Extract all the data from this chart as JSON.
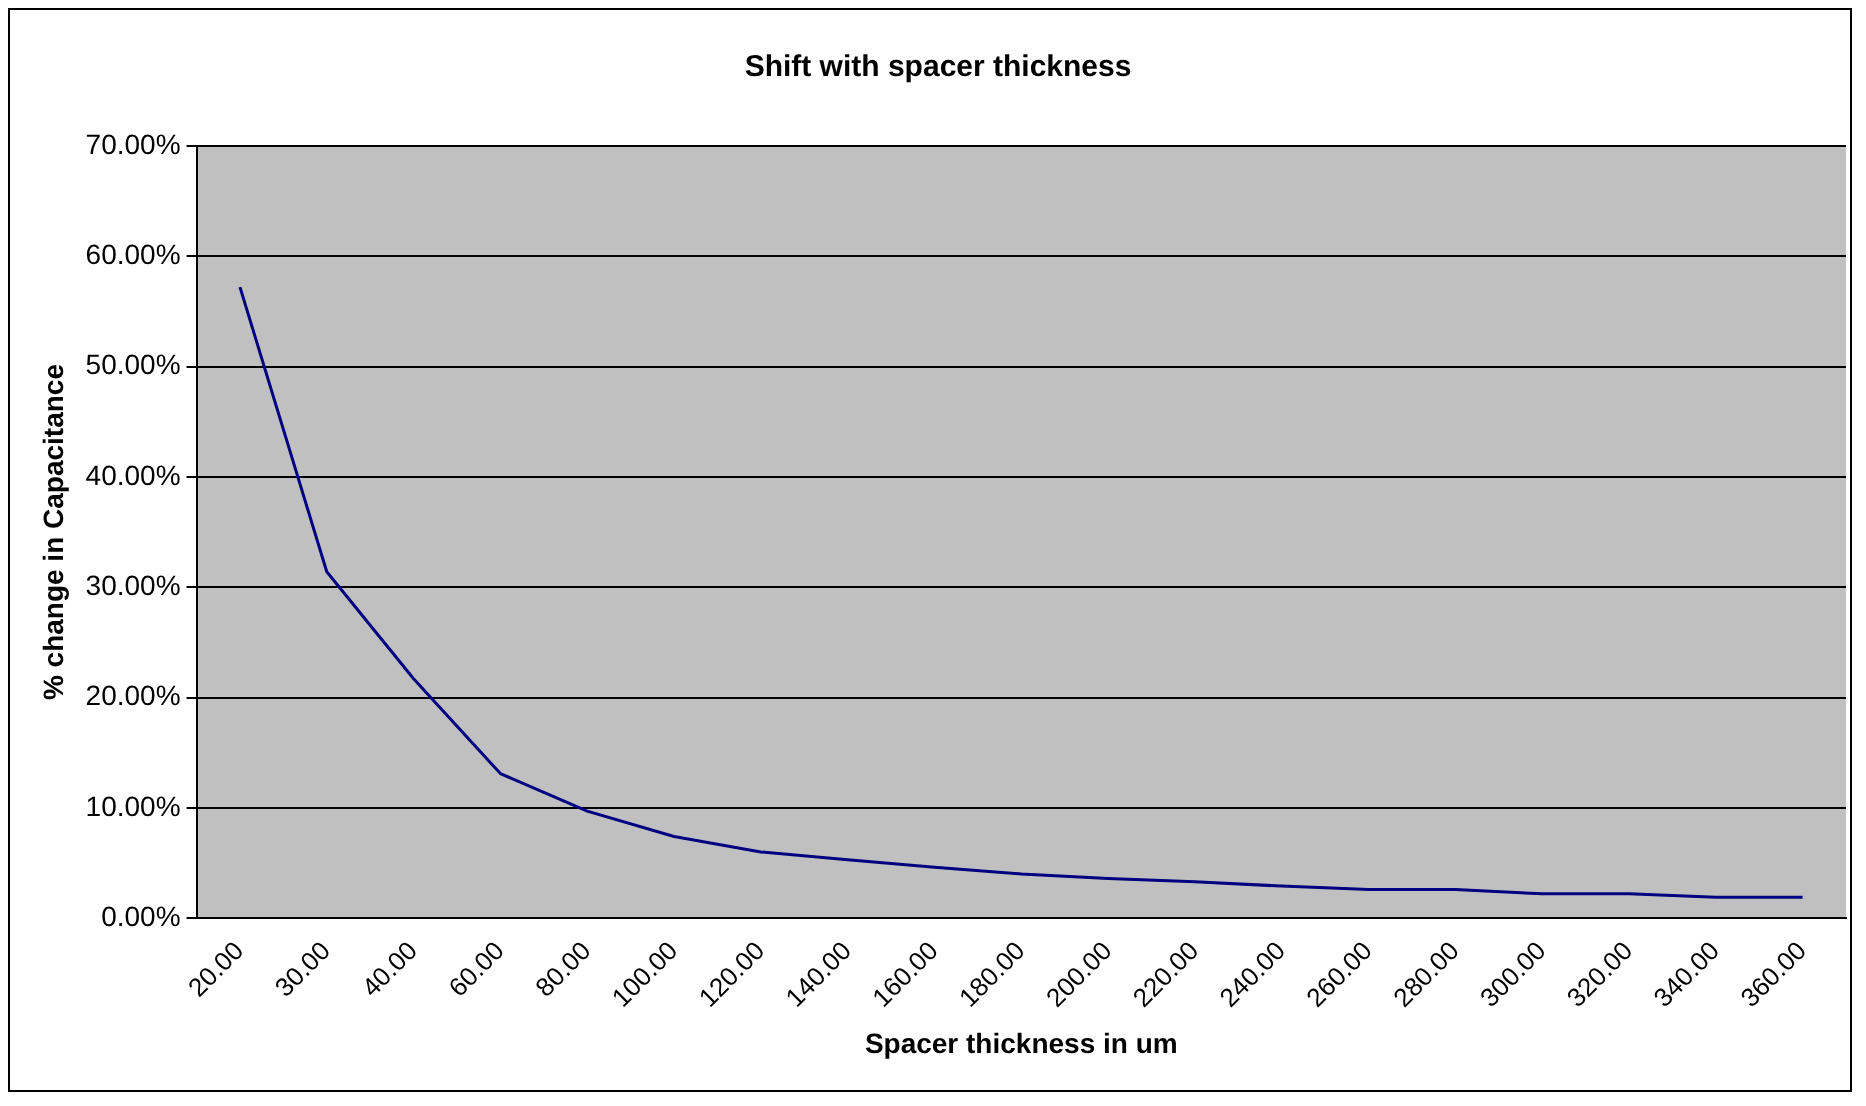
{
  "chart_data": {
    "type": "line",
    "title": "Shift with spacer thickness",
    "xlabel": "Spacer thickness in um",
    "ylabel": "% change in Capacitance",
    "categories": [
      "20.00",
      "30.00",
      "40.00",
      "60.00",
      "80.00",
      "100.00",
      "120.00",
      "140.00",
      "160.00",
      "180.00",
      "200.00",
      "220.00",
      "240.00",
      "260.00",
      "280.00",
      "300.00",
      "320.00",
      "340.00",
      "360.00"
    ],
    "series": [
      {
        "color": "#000080",
        "values": [
          57.2,
          31.4,
          21.7,
          13.1,
          9.7,
          7.4,
          6.0,
          5.3,
          4.6,
          4.0,
          3.6,
          3.3,
          2.9,
          2.6,
          2.6,
          2.2,
          2.2,
          1.9,
          1.9
        ]
      }
    ],
    "ylim": [
      0,
      70
    ],
    "yticks": [
      {
        "value": 0,
        "label": "0.00%"
      },
      {
        "value": 10,
        "label": "10.00%"
      },
      {
        "value": 20,
        "label": "20.00%"
      },
      {
        "value": 30,
        "label": "30.00%"
      },
      {
        "value": 40,
        "label": "40.00%"
      },
      {
        "value": 50,
        "label": "50.00%"
      },
      {
        "value": 60,
        "label": "60.00%"
      },
      {
        "value": 70,
        "label": "70.00%"
      }
    ],
    "grid": "y",
    "legend": false,
    "marker": "none",
    "line_style": "solid"
  }
}
